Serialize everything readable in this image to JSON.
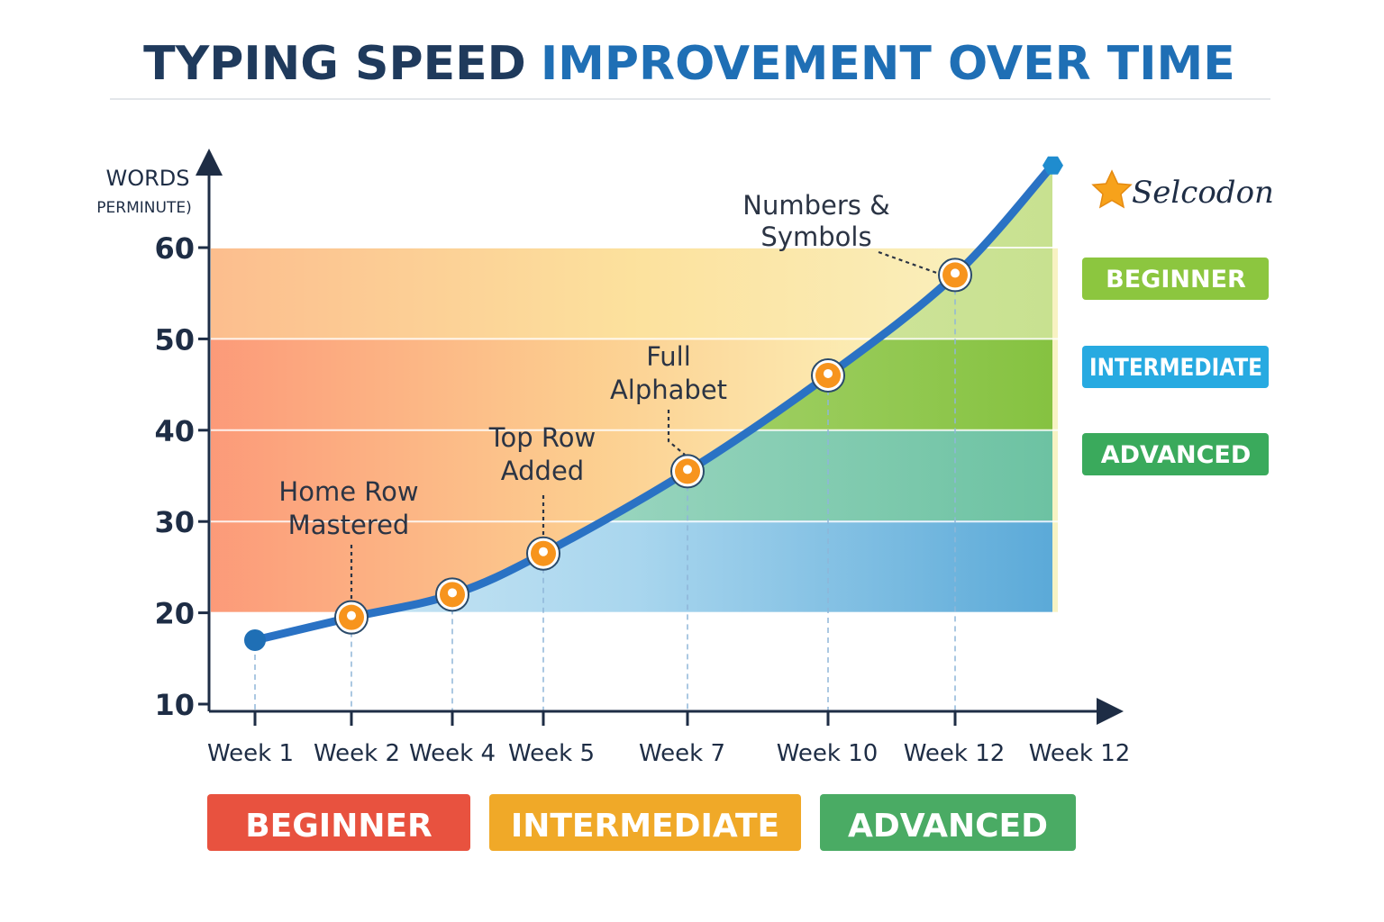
{
  "title": {
    "part1": "TYPING SPEED",
    "part2": "IMPROVEMENT OVER TIME"
  },
  "y_axis_label": {
    "line1": "WORDS",
    "line2": "PERMINUTE)"
  },
  "brand": {
    "text": "Selcodon",
    "icon": "star-icon"
  },
  "colors": {
    "title_dark": "#1f3a5c",
    "title_blue": "#1f6fb5",
    "line": "#2a72c4",
    "marker": "#f7941d",
    "start_marker": "#1f6fb5"
  },
  "side_legend": [
    {
      "label": "BEGINNER",
      "color": "#8cc63f"
    },
    {
      "label": "INTERMEDIATE",
      "color": "#27aae1"
    },
    {
      "label": "ADVANCED",
      "color": "#3aaa5c"
    }
  ],
  "bottom_legend": [
    {
      "label": "BEGINNER",
      "color": "#e8523f"
    },
    {
      "label": "INTERMEDIATE",
      "color": "#f0a928"
    },
    {
      "label": "ADVANCED",
      "color": "#4aab64"
    }
  ],
  "chart_data": {
    "type": "line",
    "title": "TYPING SPEED IMPROVEMENT OVER TIME",
    "xlabel": "",
    "ylabel": "WORDS PERMINUTE)",
    "ylim": [
      10,
      60
    ],
    "yticks": [
      10,
      20,
      30,
      40,
      50,
      60
    ],
    "x_ticks": [
      "Week 1",
      "Week 2",
      "Week 4",
      "Week 5",
      "Week 7",
      "Week 10",
      "Week 12",
      "Week 12"
    ],
    "grid": true,
    "legend": "right",
    "series": [
      {
        "points": [
          {
            "x": "Week 1",
            "y": 17
          },
          {
            "x": "Week 2",
            "y": 19.5
          },
          {
            "x": "Week 4",
            "y": 22
          },
          {
            "x": "Week 5",
            "y": 26.5
          },
          {
            "x": "Week 7",
            "y": 35.5
          },
          {
            "x": "Week 10",
            "y": 46
          },
          {
            "x": "Week 12",
            "y": 57
          },
          {
            "x": "Week 12",
            "y": 69
          }
        ]
      }
    ],
    "annotations": [
      {
        "lines": [
          "Home Row",
          "Mastered"
        ],
        "point_index": 1
      },
      {
        "lines": [
          "Top Row",
          "Added"
        ],
        "point_index": 3
      },
      {
        "lines": [
          "Full",
          "Alphabet"
        ],
        "point_index": 4
      },
      {
        "lines": [
          "Numbers &",
          "Symbols"
        ],
        "point_index": 6
      }
    ]
  }
}
